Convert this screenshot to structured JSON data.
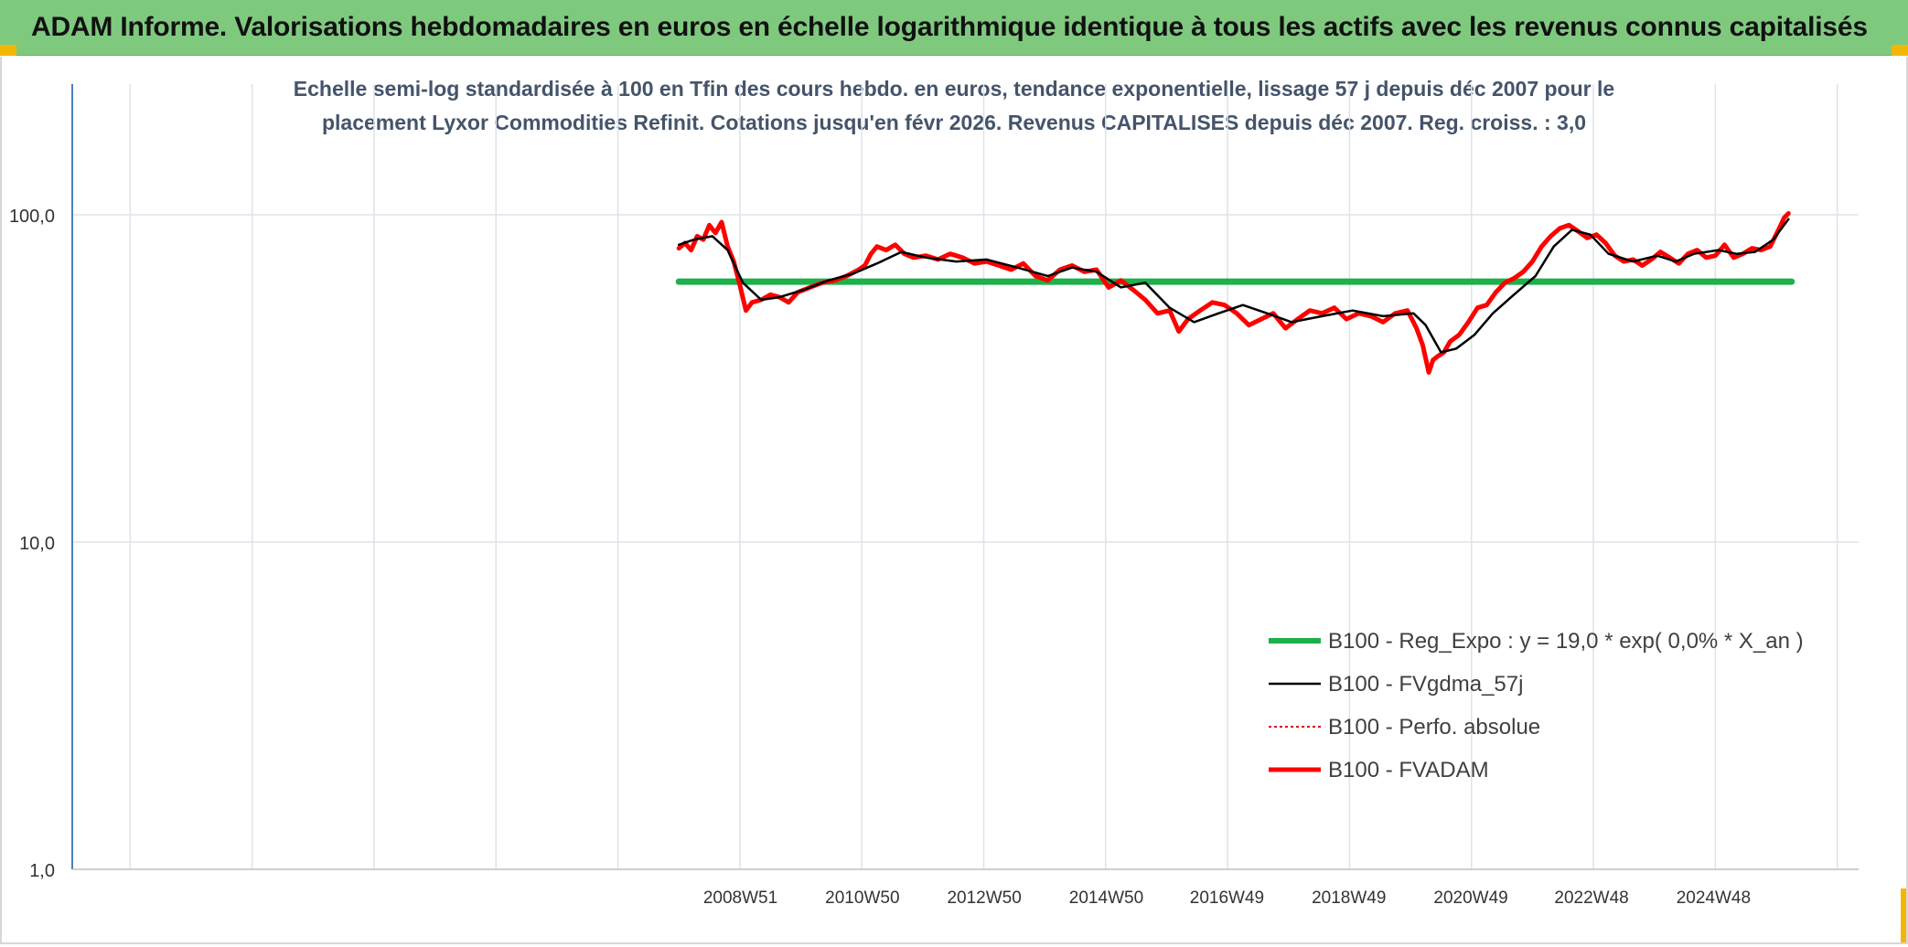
{
  "header": {
    "title": "ADAM Informe. Valorisations hebdomadaires en euros en échelle logarithmique identique à tous les actifs avec les revenus connus capitalisés"
  },
  "colors": {
    "header_bg": "#7fc97f",
    "regression": "#1db04b",
    "smoothed": "#000000",
    "perf_absolue": "#e00000",
    "fvadam": "#ff0000",
    "grid": "#dde3ea",
    "axis": "#4a7fc1",
    "corner_marks": "#f2b705"
  },
  "chart_data": {
    "type": "line",
    "title_line1": "Echelle semi-log standardisée à 100 en Tfin des cours hebdo. en euros, tendance exponentielle, lissage 57 j depuis déc 2007 pour le",
    "title_line2": "placement Lyxor Commodities Refinit. Cotations jusqu'en févr 2026. Revenus CAPITALISES depuis déc 2007. Reg. croiss. : 3,0",
    "y_scale": "log",
    "ylim": [
      1,
      200
    ],
    "yticks": [
      1,
      10,
      100
    ],
    "ytick_labels": [
      "1,0",
      "10,0",
      "100,0"
    ],
    "xlim": [
      1998.0,
      2027.3
    ],
    "x_category_ticks": [
      1998.95,
      2000.95,
      2002.95,
      2004.95,
      2006.95,
      2008.95,
      2010.95,
      2012.95,
      2014.95,
      2016.95,
      2018.95,
      2020.95,
      2022.95,
      2024.95,
      2026.95
    ],
    "x_labeled_ticks": [
      {
        "x": 2008.96,
        "label": "2008W51"
      },
      {
        "x": 2010.96,
        "label": "2010W50"
      },
      {
        "x": 2012.96,
        "label": "2012W50"
      },
      {
        "x": 2014.96,
        "label": "2014W50"
      },
      {
        "x": 2016.94,
        "label": "2016W49"
      },
      {
        "x": 2018.94,
        "label": "2018W49"
      },
      {
        "x": 2020.94,
        "label": "2020W49"
      },
      {
        "x": 2022.92,
        "label": "2022W48"
      },
      {
        "x": 2024.92,
        "label": "2024W48"
      }
    ],
    "grid": true,
    "legend_position": "bottom-right",
    "series": [
      {
        "key": "regression",
        "name": "B100 - Reg_Expo : y = 19,0 * exp( 0,0% *  X_an )",
        "x": [
          2007.95,
          2026.2
        ],
        "values": [
          62.5,
          62.5
        ]
      },
      {
        "key": "smoothed",
        "name": "B100 - FVgdma_57j",
        "x": [
          2007.95,
          2008.2,
          2008.5,
          2008.75,
          2009.0,
          2009.3,
          2009.6,
          2010.0,
          2010.4,
          2010.8,
          2011.2,
          2011.6,
          2012.0,
          2012.5,
          2013.0,
          2013.5,
          2014.0,
          2014.4,
          2014.8,
          2015.2,
          2015.6,
          2016.0,
          2016.4,
          2016.8,
          2017.2,
          2017.6,
          2018.0,
          2018.5,
          2019.0,
          2019.5,
          2020.0,
          2020.2,
          2020.45,
          2020.7,
          2021.0,
          2021.3,
          2021.6,
          2022.0,
          2022.3,
          2022.6,
          2022.9,
          2023.2,
          2023.6,
          2024.0,
          2024.3,
          2024.6,
          2025.0,
          2025.3,
          2025.6,
          2025.9,
          2026.15
        ],
        "values": [
          81,
          84,
          86,
          78,
          62,
          55,
          56,
          59,
          63,
          66,
          71,
          77,
          74,
          72,
          73,
          69,
          65,
          69,
          67,
          60,
          62,
          52,
          47,
          50,
          53,
          50,
          47,
          49,
          51,
          49,
          50,
          46,
          38,
          39,
          43,
          50,
          56,
          65,
          80,
          90,
          87,
          76,
          72,
          75,
          72,
          76,
          78,
          76,
          77,
          84,
          97
        ]
      },
      {
        "key": "perf_absolue",
        "name": "B100 - Perfo. absolue",
        "x": [],
        "values": []
      },
      {
        "key": "fvadam",
        "name": "B100 - FVADAM",
        "x": [
          2007.95,
          2008.05,
          2008.15,
          2008.25,
          2008.35,
          2008.45,
          2008.55,
          2008.65,
          2008.75,
          2008.85,
          2008.95,
          2009.05,
          2009.15,
          2009.3,
          2009.45,
          2009.6,
          2009.75,
          2009.9,
          2010.1,
          2010.3,
          2010.5,
          2010.7,
          2010.9,
          2011.0,
          2011.1,
          2011.2,
          2011.35,
          2011.5,
          2011.65,
          2011.8,
          2012.0,
          2012.2,
          2012.4,
          2012.6,
          2012.8,
          2013.0,
          2013.2,
          2013.4,
          2013.6,
          2013.8,
          2014.0,
          2014.2,
          2014.4,
          2014.6,
          2014.8,
          2015.0,
          2015.2,
          2015.4,
          2015.6,
          2015.8,
          2016.0,
          2016.15,
          2016.3,
          2016.5,
          2016.7,
          2016.9,
          2017.1,
          2017.3,
          2017.5,
          2017.7,
          2017.9,
          2018.1,
          2018.3,
          2018.5,
          2018.7,
          2018.9,
          2019.1,
          2019.3,
          2019.5,
          2019.7,
          2019.9,
          2020.05,
          2020.15,
          2020.25,
          2020.32,
          2020.4,
          2020.5,
          2020.6,
          2020.75,
          2020.9,
          2021.05,
          2021.2,
          2021.35,
          2021.5,
          2021.65,
          2021.8,
          2021.95,
          2022.1,
          2022.25,
          2022.4,
          2022.55,
          2022.7,
          2022.85,
          2023.0,
          2023.15,
          2023.3,
          2023.45,
          2023.6,
          2023.75,
          2023.9,
          2024.05,
          2024.2,
          2024.35,
          2024.5,
          2024.65,
          2024.8,
          2024.95,
          2025.1,
          2025.25,
          2025.4,
          2025.55,
          2025.7,
          2025.85,
          2026.0,
          2026.08,
          2026.15
        ],
        "values": [
          79,
          82,
          78,
          86,
          84,
          93,
          88,
          95,
          80,
          72,
          61,
          51,
          54,
          55,
          57,
          56,
          54,
          58,
          60,
          62,
          63,
          65,
          68,
          70,
          76,
          80,
          78,
          81,
          76,
          74,
          75,
          73,
          76,
          74,
          71,
          72,
          70,
          68,
          71,
          65,
          63,
          68,
          70,
          67,
          68,
          60,
          63,
          59,
          55,
          50,
          51,
          44,
          48,
          51,
          54,
          53,
          50,
          46,
          48,
          50,
          45,
          48,
          51,
          50,
          52,
          48,
          50,
          49,
          47,
          50,
          51,
          45,
          40,
          33,
          36,
          37,
          38,
          41,
          43,
          47,
          52,
          53,
          58,
          62,
          64,
          67,
          72,
          80,
          86,
          91,
          93,
          89,
          85,
          87,
          82,
          75,
          72,
          73,
          70,
          73,
          77,
          74,
          71,
          76,
          78,
          74,
          75,
          81,
          74,
          76,
          79,
          78,
          80,
          91,
          98,
          101
        ]
      }
    ]
  }
}
